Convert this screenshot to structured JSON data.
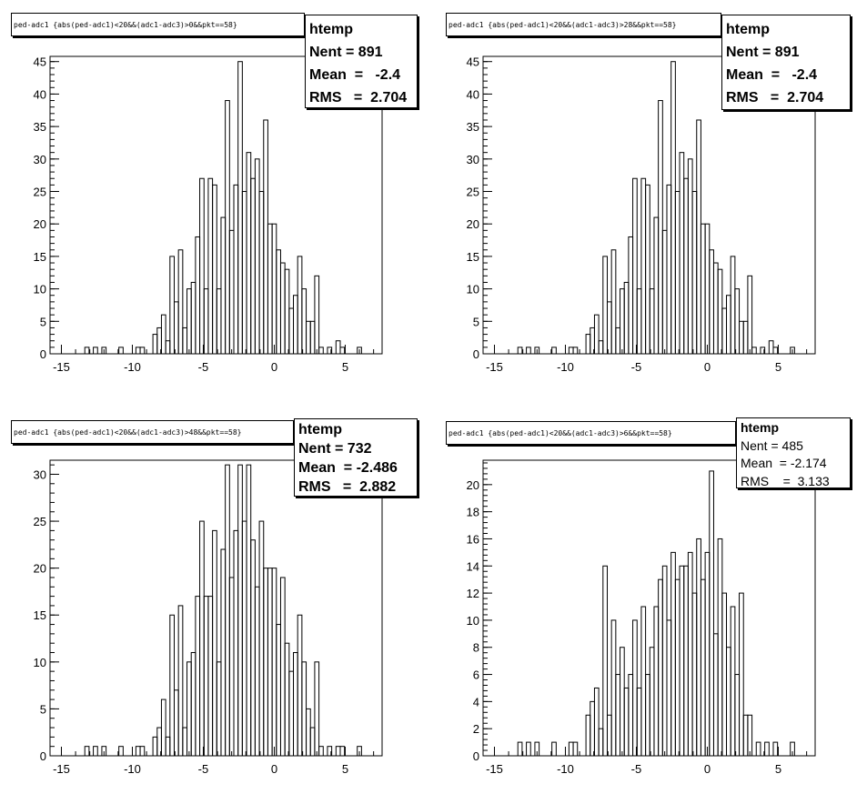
{
  "chart_data": [
    {
      "type": "bar",
      "title": "ped-adc1 {abs(ped-adc1)<20&&(adc1-adc3)>0&&pkt==58}",
      "stats": {
        "name": "htemp",
        "nent": "891",
        "mean": "-2.4",
        "rms": "2.704"
      },
      "xlim": [
        -15.8,
        7.6
      ],
      "ylim": [
        0,
        45.8
      ],
      "xticks": [
        -15,
        -10,
        -5,
        0,
        5
      ],
      "yticks": [
        0,
        5,
        10,
        15,
        20,
        25,
        30,
        35,
        40,
        45
      ],
      "bin_width": 0.3,
      "x": [
        -13.2,
        -12.9,
        -12.6,
        -12.3,
        -12.0,
        -11.7,
        -11.4,
        -11.1,
        -10.8,
        -10.5,
        -10.2,
        -9.9,
        -9.6,
        -9.3,
        -9.0,
        -8.7,
        -8.4,
        -8.1,
        -7.8,
        -7.5,
        -7.2,
        -6.9,
        -6.6,
        -6.3,
        -6.0,
        -5.7,
        -5.4,
        -5.1,
        -4.8,
        -4.5,
        -4.2,
        -3.9,
        -3.6,
        -3.3,
        -3.0,
        -2.7,
        -2.4,
        -2.1,
        -1.8,
        -1.5,
        -1.2,
        -0.9,
        -0.6,
        -0.3,
        0.0,
        0.3,
        0.6,
        0.9,
        1.2,
        1.5,
        1.8,
        2.1,
        2.4,
        2.7,
        3.0,
        3.3,
        3.6,
        3.9,
        4.2,
        4.5,
        4.8,
        5.1,
        5.4,
        5.7,
        6.0
      ],
      "values": [
        1,
        0,
        1,
        0,
        1,
        0,
        0,
        0,
        1,
        0,
        0,
        0,
        1,
        1,
        0,
        0,
        3,
        4,
        6,
        2,
        15,
        8,
        16,
        4,
        10,
        11,
        18,
        27,
        10,
        27,
        26,
        10,
        21,
        39,
        19,
        26,
        45,
        25,
        31,
        27,
        30,
        25,
        36,
        20,
        20,
        16,
        14,
        13,
        7,
        9,
        15,
        10,
        5,
        5,
        12,
        1,
        0,
        1,
        0,
        2,
        1,
        0,
        0,
        0,
        1
      ]
    },
    {
      "type": "bar",
      "title": "ped-adc1 {abs(ped-adc1)<20&&(adc1-adc3)>28&&pkt==58}",
      "stats": {
        "name": "htemp",
        "nent": "891",
        "mean": "-2.4",
        "rms": "2.704"
      },
      "xlim": [
        -15.8,
        7.6
      ],
      "ylim": [
        0,
        45.8
      ],
      "xticks": [
        -15,
        -10,
        -5,
        0,
        5
      ],
      "yticks": [
        0,
        5,
        10,
        15,
        20,
        25,
        30,
        35,
        40,
        45
      ],
      "bin_width": 0.3,
      "x": [
        -13.2,
        -12.9,
        -12.6,
        -12.3,
        -12.0,
        -11.7,
        -11.4,
        -11.1,
        -10.8,
        -10.5,
        -10.2,
        -9.9,
        -9.6,
        -9.3,
        -9.0,
        -8.7,
        -8.4,
        -8.1,
        -7.8,
        -7.5,
        -7.2,
        -6.9,
        -6.6,
        -6.3,
        -6.0,
        -5.7,
        -5.4,
        -5.1,
        -4.8,
        -4.5,
        -4.2,
        -3.9,
        -3.6,
        -3.3,
        -3.0,
        -2.7,
        -2.4,
        -2.1,
        -1.8,
        -1.5,
        -1.2,
        -0.9,
        -0.6,
        -0.3,
        0.0,
        0.3,
        0.6,
        0.9,
        1.2,
        1.5,
        1.8,
        2.1,
        2.4,
        2.7,
        3.0,
        3.3,
        3.6,
        3.9,
        4.2,
        4.5,
        4.8,
        5.1,
        5.4,
        5.7,
        6.0
      ],
      "values": [
        1,
        0,
        1,
        0,
        1,
        0,
        0,
        0,
        1,
        0,
        0,
        0,
        1,
        1,
        0,
        0,
        3,
        4,
        6,
        2,
        15,
        8,
        16,
        4,
        10,
        11,
        18,
        27,
        10,
        27,
        26,
        10,
        21,
        39,
        19,
        26,
        45,
        25,
        31,
        27,
        30,
        25,
        36,
        20,
        20,
        16,
        14,
        13,
        7,
        9,
        15,
        10,
        5,
        5,
        12,
        1,
        0,
        1,
        0,
        2,
        1,
        0,
        0,
        0,
        1
      ]
    },
    {
      "type": "bar",
      "title": "ped-adc1 {abs(ped-adc1)<20&&(adc1-adc3)>48&&pkt==58}",
      "stats": {
        "name": "htemp",
        "nent": "732",
        "mean": "-2.486",
        "rms": "2.882"
      },
      "xlim": [
        -15.8,
        7.6
      ],
      "ylim": [
        0,
        31.5
      ],
      "xticks": [
        -15,
        -10,
        -5,
        0,
        5
      ],
      "yticks": [
        0,
        5,
        10,
        15,
        20,
        25,
        30
      ],
      "bin_width": 0.3,
      "x": [
        -13.2,
        -12.9,
        -12.6,
        -12.3,
        -12.0,
        -11.7,
        -11.4,
        -11.1,
        -10.8,
        -10.5,
        -10.2,
        -9.9,
        -9.6,
        -9.3,
        -9.0,
        -8.7,
        -8.4,
        -8.1,
        -7.8,
        -7.5,
        -7.2,
        -6.9,
        -6.6,
        -6.3,
        -6.0,
        -5.7,
        -5.4,
        -5.1,
        -4.8,
        -4.5,
        -4.2,
        -3.9,
        -3.6,
        -3.3,
        -3.0,
        -2.7,
        -2.4,
        -2.1,
        -1.8,
        -1.5,
        -1.2,
        -0.9,
        -0.6,
        -0.3,
        0.0,
        0.3,
        0.6,
        0.9,
        1.2,
        1.5,
        1.8,
        2.1,
        2.4,
        2.7,
        3.0,
        3.3,
        3.6,
        3.9,
        4.2,
        4.5,
        4.8,
        5.1,
        5.4,
        5.7,
        6.0
      ],
      "values": [
        1,
        0,
        1,
        0,
        1,
        0,
        0,
        0,
        1,
        0,
        0,
        0,
        1,
        1,
        0,
        0,
        2,
        3,
        6,
        2,
        15,
        7,
        16,
        3,
        10,
        11,
        17,
        25,
        17,
        17,
        24,
        10,
        22,
        31,
        19,
        24,
        31,
        25,
        31,
        23,
        18,
        25,
        20,
        20,
        20,
        14,
        19,
        12,
        9,
        11,
        15,
        10,
        5,
        3,
        10,
        1,
        0,
        1,
        0,
        1,
        1,
        0,
        0,
        0,
        1
      ]
    },
    {
      "type": "bar",
      "title": "ped-adc1 {abs(ped-adc1)<20&&(adc1-adc3)>6&&pkt==58}",
      "stats": {
        "name": "htemp",
        "nent": "485",
        "mean": "-2.174",
        "rms": "3.133"
      },
      "xlim": [
        -15.8,
        7.6
      ],
      "ylim": [
        0,
        21.8
      ],
      "xticks": [
        -15,
        -10,
        -5,
        0,
        5
      ],
      "yticks": [
        0,
        2,
        4,
        6,
        8,
        10,
        12,
        14,
        16,
        18,
        20
      ],
      "bin_width": 0.3,
      "x": [
        -13.2,
        -12.9,
        -12.6,
        -12.3,
        -12.0,
        -11.7,
        -11.4,
        -11.1,
        -10.8,
        -10.5,
        -10.2,
        -9.9,
        -9.6,
        -9.3,
        -9.0,
        -8.7,
        -8.4,
        -8.1,
        -7.8,
        -7.5,
        -7.2,
        -6.9,
        -6.6,
        -6.3,
        -6.0,
        -5.7,
        -5.4,
        -5.1,
        -4.8,
        -4.5,
        -4.2,
        -3.9,
        -3.6,
        -3.3,
        -3.0,
        -2.7,
        -2.4,
        -2.1,
        -1.8,
        -1.5,
        -1.2,
        -0.9,
        -0.6,
        -0.3,
        0.0,
        0.3,
        0.6,
        0.9,
        1.2,
        1.5,
        1.8,
        2.1,
        2.4,
        2.7,
        3.0,
        3.3,
        3.6,
        3.9,
        4.2,
        4.5,
        4.8,
        5.1,
        5.4,
        5.7,
        6.0
      ],
      "values": [
        1,
        0,
        1,
        0,
        1,
        0,
        0,
        0,
        1,
        0,
        0,
        0,
        1,
        1,
        0,
        0,
        3,
        4,
        5,
        2,
        14,
        3,
        10,
        6,
        8,
        5,
        6,
        10,
        5,
        11,
        6,
        8,
        11,
        13,
        14,
        10,
        15,
        13,
        14,
        14,
        15,
        12,
        16,
        13,
        15,
        21,
        9,
        16,
        12,
        8,
        11,
        6,
        12,
        3,
        3,
        0,
        1,
        0,
        1,
        0,
        1,
        0,
        0,
        0,
        1
      ]
    }
  ]
}
